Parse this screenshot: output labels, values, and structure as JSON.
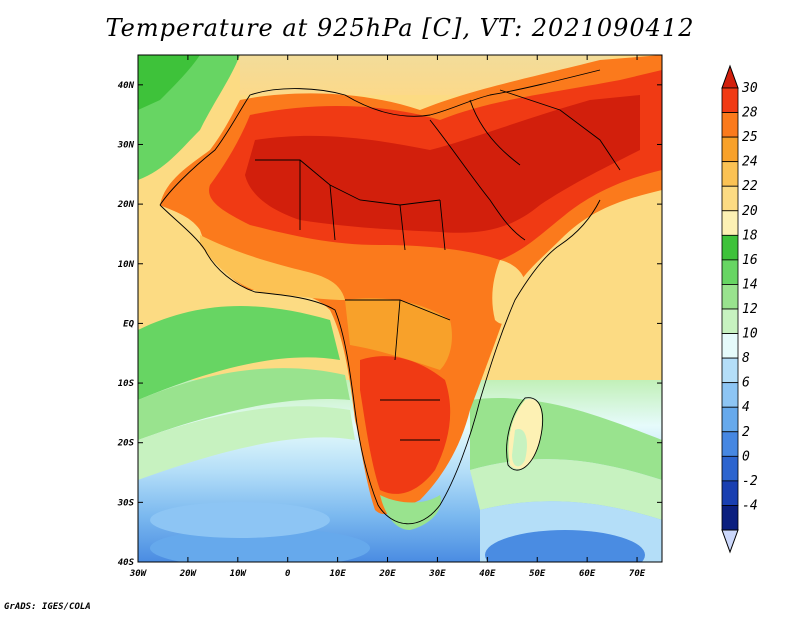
{
  "title": "Temperature at 925hPa [C], VT: 2021090412",
  "footer": "GrADS: IGES/COLA",
  "map": {
    "lon_range": [
      -30,
      75
    ],
    "lat_range": [
      -40,
      45
    ],
    "lon_ticks": [
      {
        "value": -30,
        "label": "30W"
      },
      {
        "value": -20,
        "label": "20W"
      },
      {
        "value": -10,
        "label": "10W"
      },
      {
        "value": 0,
        "label": "0"
      },
      {
        "value": 10,
        "label": "10E"
      },
      {
        "value": 20,
        "label": "20E"
      },
      {
        "value": 30,
        "label": "30E"
      },
      {
        "value": 40,
        "label": "40E"
      },
      {
        "value": 50,
        "label": "50E"
      },
      {
        "value": 60,
        "label": "60E"
      },
      {
        "value": 70,
        "label": "70E"
      }
    ],
    "lat_ticks": [
      {
        "value": 40,
        "label": "40N"
      },
      {
        "value": 30,
        "label": "30N"
      },
      {
        "value": 20,
        "label": "20N"
      },
      {
        "value": 10,
        "label": "10N"
      },
      {
        "value": 0,
        "label": "EQ"
      },
      {
        "value": -10,
        "label": "10S"
      },
      {
        "value": -20,
        "label": "20S"
      },
      {
        "value": -30,
        "label": "30S"
      },
      {
        "value": -40,
        "label": "40S"
      }
    ]
  },
  "colorbar": {
    "levels": [
      "30",
      "28",
      "25",
      "24",
      "22",
      "20",
      "18",
      "16",
      "14",
      "12",
      "10",
      "8",
      "6",
      "4",
      "2",
      "0",
      "-2",
      "-4"
    ],
    "colors": [
      "#f03a14",
      "#fb7a1c",
      "#f8a12a",
      "#fbc254",
      "#fcdb83",
      "#fdf1b4",
      "#3ec23a",
      "#67d563",
      "#99e38e",
      "#c7f2c0",
      "#e6fbfb",
      "#b4def8",
      "#8dc5f4",
      "#66a9ec",
      "#4687e2",
      "#2c64cf",
      "#193fb1",
      "#0b1f7f"
    ],
    "top_color": "#d21f0c",
    "bottom_color": "#ccd8fb"
  }
}
